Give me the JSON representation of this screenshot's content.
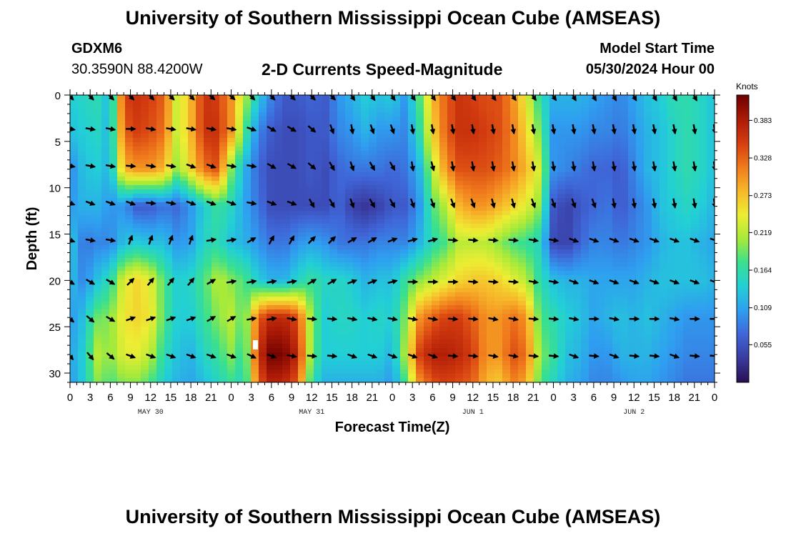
{
  "header": {
    "title": "University of Southern Mississippi Ocean Cube (AMSEAS)",
    "station_id": "GDXM6",
    "station_coords": "30.3590N  88.4200W",
    "plot_title": "2-D Currents Speed-Magnitude",
    "start_label": "Model Start Time",
    "start_value": "05/30/2024 Hour 00"
  },
  "footer": {
    "title": "University of Southern Mississippi Ocean Cube (AMSEAS)"
  },
  "chart_data": {
    "type": "heatmap",
    "title": "2-D Currents Speed-Magnitude",
    "xlabel": "Forecast Time(Z)",
    "ylabel": "Depth (ft)",
    "x_range_hours": [
      0,
      96
    ],
    "y_range_ft": [
      0,
      31
    ],
    "y_inverted": true,
    "x_tick_labels": [
      "0",
      "3",
      "6",
      "9",
      "12",
      "15",
      "18",
      "21",
      "0",
      "3",
      "6",
      "9",
      "12",
      "15",
      "18",
      "21",
      "0",
      "3",
      "6",
      "9",
      "12",
      "15",
      "18",
      "21",
      "0",
      "3",
      "6",
      "9",
      "12",
      "15",
      "18",
      "21",
      "0"
    ],
    "y_ticks": [
      0,
      5,
      10,
      15,
      20,
      25,
      30
    ],
    "date_labels": [
      {
        "hour": 12,
        "label": "MAY 30"
      },
      {
        "hour": 36,
        "label": "MAY 31"
      },
      {
        "hour": 60,
        "label": "JUN 1"
      },
      {
        "hour": 84,
        "label": "JUN 2"
      }
    ],
    "colorbar": {
      "unit": "Knots",
      "range": [
        0.0,
        0.42
      ],
      "ticks": [
        0.055,
        0.109,
        0.164,
        0.219,
        0.273,
        0.328,
        0.383
      ],
      "tick_labels": [
        "0.055",
        "0.109",
        "0.164",
        "0.219",
        "0.273",
        "0.328",
        "0.383"
      ],
      "colormap": [
        "#2a0e52",
        "#3a3aa0",
        "#3f66d8",
        "#2f9ef0",
        "#22cfd6",
        "#39e08f",
        "#a7ea39",
        "#eded33",
        "#f7b72a",
        "#f07a1c",
        "#d43d10",
        "#ab1a06",
        "#6e0000"
      ]
    },
    "vector_rows_depth_ft": [
      0,
      3.5,
      7.5,
      11.5,
      15.5,
      20,
      24,
      28
    ],
    "vector_hours": [
      0,
      3,
      6,
      9,
      12,
      15,
      18,
      21,
      24,
      27,
      30,
      33,
      36,
      39,
      42,
      45,
      48,
      51,
      54,
      57,
      60,
      63,
      66,
      69,
      72,
      75,
      78,
      81,
      84,
      87,
      90,
      93,
      96
    ],
    "speed_depths_ft": [
      0,
      4,
      8,
      12,
      16,
      20,
      24,
      28,
      31
    ],
    "speed_knots": [
      [
        0.14,
        0.13,
        0.09,
        0.1,
        0.14,
        0.13,
        0.1,
        0.11,
        0.1
      ],
      [
        0.15,
        0.14,
        0.13,
        0.12,
        0.08,
        0.09,
        0.13,
        0.14,
        0.14
      ],
      [
        0.16,
        0.15,
        0.14,
        0.12,
        0.09,
        0.13,
        0.19,
        0.22,
        0.2
      ],
      [
        0.12,
        0.12,
        0.12,
        0.1,
        0.09,
        0.16,
        0.2,
        0.2,
        0.18
      ],
      [
        0.35,
        0.33,
        0.28,
        0.1,
        0.13,
        0.24,
        0.25,
        0.24,
        0.2
      ],
      [
        0.36,
        0.35,
        0.3,
        0.06,
        0.14,
        0.26,
        0.26,
        0.24,
        0.2
      ],
      [
        0.35,
        0.34,
        0.3,
        0.06,
        0.13,
        0.24,
        0.25,
        0.22,
        0.18
      ],
      [
        0.33,
        0.32,
        0.28,
        0.08,
        0.13,
        0.18,
        0.18,
        0.16,
        0.14
      ],
      [
        0.22,
        0.22,
        0.2,
        0.07,
        0.1,
        0.14,
        0.14,
        0.13,
        0.12
      ],
      [
        0.28,
        0.28,
        0.26,
        0.1,
        0.11,
        0.15,
        0.14,
        0.12,
        0.11
      ],
      [
        0.36,
        0.36,
        0.32,
        0.14,
        0.15,
        0.18,
        0.17,
        0.15,
        0.13
      ],
      [
        0.35,
        0.36,
        0.34,
        0.17,
        0.16,
        0.22,
        0.2,
        0.17,
        0.15
      ],
      [
        0.3,
        0.3,
        0.2,
        0.15,
        0.13,
        0.2,
        0.22,
        0.2,
        0.17
      ],
      [
        0.22,
        0.18,
        0.12,
        0.11,
        0.12,
        0.18,
        0.18,
        0.16,
        0.15
      ],
      [
        0.14,
        0.09,
        0.07,
        0.08,
        0.1,
        0.14,
        0.33,
        0.36,
        0.33
      ],
      [
        0.09,
        0.06,
        0.05,
        0.05,
        0.08,
        0.12,
        0.37,
        0.42,
        0.38
      ],
      [
        0.06,
        0.05,
        0.05,
        0.05,
        0.08,
        0.12,
        0.37,
        0.41,
        0.37
      ],
      [
        0.06,
        0.05,
        0.05,
        0.05,
        0.1,
        0.15,
        0.34,
        0.37,
        0.33
      ],
      [
        0.07,
        0.06,
        0.06,
        0.05,
        0.11,
        0.17,
        0.2,
        0.19,
        0.16
      ],
      [
        0.06,
        0.06,
        0.05,
        0.05,
        0.1,
        0.15,
        0.14,
        0.14,
        0.12
      ],
      [
        0.1,
        0.09,
        0.07,
        0.07,
        0.08,
        0.15,
        0.15,
        0.14,
        0.12
      ],
      [
        0.12,
        0.1,
        0.08,
        0.04,
        0.08,
        0.14,
        0.15,
        0.14,
        0.12
      ],
      [
        0.14,
        0.12,
        0.08,
        0.03,
        0.08,
        0.12,
        0.14,
        0.14,
        0.12
      ],
      [
        0.13,
        0.1,
        0.08,
        0.04,
        0.09,
        0.13,
        0.15,
        0.14,
        0.12
      ],
      [
        0.14,
        0.1,
        0.07,
        0.06,
        0.09,
        0.13,
        0.14,
        0.12,
        0.1
      ],
      [
        0.1,
        0.09,
        0.08,
        0.06,
        0.09,
        0.17,
        0.2,
        0.22,
        0.18
      ],
      [
        0.18,
        0.16,
        0.12,
        0.1,
        0.12,
        0.2,
        0.3,
        0.35,
        0.3
      ],
      [
        0.28,
        0.26,
        0.22,
        0.18,
        0.16,
        0.22,
        0.33,
        0.38,
        0.34
      ],
      [
        0.33,
        0.33,
        0.3,
        0.22,
        0.18,
        0.24,
        0.35,
        0.38,
        0.35
      ],
      [
        0.36,
        0.36,
        0.34,
        0.28,
        0.22,
        0.26,
        0.35,
        0.37,
        0.34
      ],
      [
        0.35,
        0.36,
        0.34,
        0.3,
        0.22,
        0.27,
        0.33,
        0.35,
        0.33
      ],
      [
        0.34,
        0.35,
        0.34,
        0.3,
        0.22,
        0.27,
        0.3,
        0.3,
        0.28
      ],
      [
        0.34,
        0.34,
        0.33,
        0.28,
        0.2,
        0.26,
        0.3,
        0.3,
        0.27
      ],
      [
        0.3,
        0.31,
        0.31,
        0.26,
        0.18,
        0.24,
        0.32,
        0.34,
        0.31
      ],
      [
        0.24,
        0.26,
        0.28,
        0.24,
        0.17,
        0.22,
        0.3,
        0.32,
        0.29
      ],
      [
        0.16,
        0.19,
        0.23,
        0.2,
        0.15,
        0.16,
        0.18,
        0.2,
        0.18
      ],
      [
        0.12,
        0.1,
        0.1,
        0.06,
        0.05,
        0.13,
        0.16,
        0.17,
        0.15
      ],
      [
        0.12,
        0.1,
        0.09,
        0.04,
        0.04,
        0.12,
        0.14,
        0.13,
        0.12
      ],
      [
        0.12,
        0.1,
        0.08,
        0.06,
        0.07,
        0.12,
        0.13,
        0.12,
        0.11
      ],
      [
        0.11,
        0.09,
        0.07,
        0.07,
        0.09,
        0.11,
        0.11,
        0.1,
        0.09
      ],
      [
        0.1,
        0.09,
        0.07,
        0.08,
        0.09,
        0.11,
        0.12,
        0.1,
        0.09
      ],
      [
        0.09,
        0.08,
        0.06,
        0.06,
        0.08,
        0.11,
        0.13,
        0.12,
        0.1
      ],
      [
        0.11,
        0.1,
        0.09,
        0.08,
        0.09,
        0.11,
        0.12,
        0.12,
        0.11
      ],
      [
        0.13,
        0.12,
        0.12,
        0.1,
        0.1,
        0.12,
        0.13,
        0.12,
        0.11
      ],
      [
        0.14,
        0.13,
        0.13,
        0.13,
        0.12,
        0.13,
        0.12,
        0.11,
        0.1
      ],
      [
        0.16,
        0.15,
        0.15,
        0.14,
        0.13,
        0.13,
        0.11,
        0.1,
        0.09
      ],
      [
        0.16,
        0.16,
        0.16,
        0.15,
        0.13,
        0.13,
        0.1,
        0.09,
        0.08
      ],
      [
        0.15,
        0.15,
        0.15,
        0.14,
        0.12,
        0.13,
        0.1,
        0.09,
        0.08
      ],
      [
        0.13,
        0.13,
        0.13,
        0.12,
        0.11,
        0.12,
        0.1,
        0.09,
        0.08
      ]
    ],
    "directions_deg": [
      [
        135,
        100,
        100,
        110,
        110,
        120,
        130,
        140
      ],
      [
        135,
        100,
        100,
        110,
        100,
        120,
        130,
        140
      ],
      [
        135,
        100,
        100,
        110,
        100,
        120,
        120,
        130
      ],
      [
        135,
        90,
        95,
        110,
        20,
        45,
        70,
        110
      ],
      [
        135,
        100,
        100,
        95,
        20,
        40,
        70,
        110
      ],
      [
        135,
        100,
        100,
        100,
        20,
        40,
        70,
        110
      ],
      [
        135,
        100,
        110,
        110,
        20,
        40,
        70,
        110
      ],
      [
        130,
        100,
        110,
        110,
        80,
        60,
        60,
        110
      ],
      [
        130,
        100,
        100,
        110,
        80,
        80,
        60,
        110
      ],
      [
        135,
        110,
        100,
        100,
        60,
        80,
        80,
        115
      ],
      [
        135,
        120,
        120,
        110,
        30,
        80,
        80,
        110
      ],
      [
        135,
        120,
        120,
        110,
        30,
        80,
        100,
        100
      ],
      [
        135,
        130,
        130,
        150,
        45,
        60,
        95,
        95
      ],
      [
        135,
        160,
        150,
        150,
        45,
        60,
        95,
        95
      ],
      [
        145,
        170,
        160,
        160,
        60,
        70,
        100,
        110
      ],
      [
        145,
        160,
        150,
        150,
        60,
        70,
        100,
        110
      ],
      [
        145,
        160,
        150,
        150,
        70,
        75,
        100,
        110
      ],
      [
        145,
        170,
        170,
        160,
        75,
        90,
        100,
        110
      ],
      [
        145,
        170,
        165,
        160,
        75,
        90,
        100,
        110
      ],
      [
        145,
        170,
        170,
        160,
        95,
        90,
        95,
        95
      ],
      [
        145,
        170,
        170,
        160,
        95,
        95,
        95,
        95
      ],
      [
        145,
        170,
        170,
        165,
        95,
        95,
        100,
        100
      ],
      [
        145,
        170,
        170,
        165,
        95,
        95,
        100,
        100
      ],
      [
        145,
        170,
        170,
        160,
        100,
        100,
        95,
        95
      ],
      [
        145,
        170,
        170,
        160,
        100,
        100,
        95,
        95
      ],
      [
        150,
        170,
        170,
        160,
        110,
        110,
        100,
        110
      ],
      [
        150,
        170,
        170,
        160,
        110,
        110,
        90,
        95
      ],
      [
        150,
        170,
        170,
        170,
        110,
        110,
        100,
        110
      ],
      [
        150,
        170,
        170,
        170,
        110,
        110,
        90,
        95
      ],
      [
        150,
        170,
        170,
        170,
        110,
        110,
        90,
        95
      ],
      [
        150,
        170,
        170,
        170,
        110,
        110,
        100,
        110
      ],
      [
        150,
        170,
        170,
        170,
        110,
        110,
        90,
        95
      ],
      [
        150,
        170,
        170,
        170,
        110,
        110,
        90,
        95
      ]
    ],
    "annotations": []
  }
}
